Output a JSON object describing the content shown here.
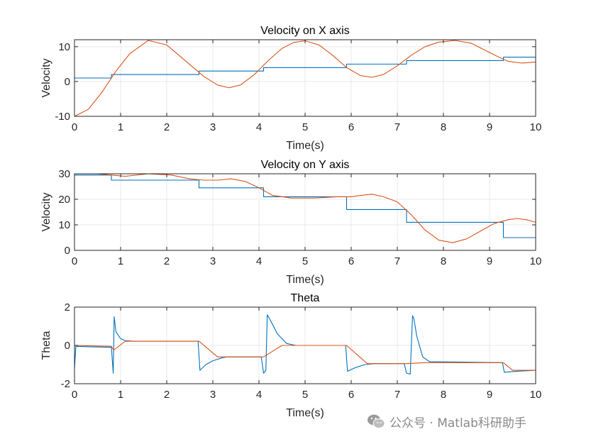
{
  "chart_data": [
    {
      "type": "line",
      "title": "Velocity on X axis",
      "xlabel": "Time(s)",
      "ylabel": "Velocity",
      "xlim": [
        0,
        10
      ],
      "ylim": [
        -10,
        12
      ],
      "xticks": [
        0,
        1,
        2,
        3,
        4,
        5,
        6,
        7,
        8,
        9,
        10
      ],
      "yticks": [
        -10,
        0,
        10
      ],
      "grid": true,
      "series": [
        {
          "kind": "step",
          "color": "#0072BD",
          "x": [
            0,
            0.8,
            2.7,
            4.1,
            5.9,
            7.2,
            9.3,
            10
          ],
          "y": [
            1,
            2,
            3,
            4,
            5,
            6,
            7,
            7
          ]
        },
        {
          "kind": "curve",
          "color": "#D95319",
          "x": [
            0,
            0.3,
            0.6,
            0.9,
            1.2,
            1.6,
            2.0,
            2.4,
            2.8,
            3.1,
            3.35,
            3.6,
            3.9,
            4.2,
            4.5,
            4.75,
            5.0,
            5.3,
            5.6,
            5.9,
            6.2,
            6.45,
            6.7,
            7.0,
            7.3,
            7.6,
            7.9,
            8.25,
            8.6,
            8.9,
            9.2,
            9.4,
            9.7,
            10
          ],
          "y": [
            -10,
            -8,
            -3,
            3,
            8,
            11.8,
            10.5,
            6,
            1.5,
            -1,
            -1.8,
            -1,
            2,
            6,
            9.5,
            11.2,
            11.7,
            10.5,
            7.5,
            4,
            1.7,
            1.2,
            2,
            4.5,
            7.5,
            10,
            11.3,
            11.8,
            11,
            9,
            7,
            5.8,
            5.3,
            5.6
          ]
        }
      ]
    },
    {
      "type": "line",
      "title": "Velocity on Y axis",
      "xlabel": "Time(s)",
      "ylabel": "Velocity",
      "xlim": [
        0,
        10
      ],
      "ylim": [
        0,
        30
      ],
      "xticks": [
        0,
        1,
        2,
        3,
        4,
        5,
        6,
        7,
        8,
        9,
        10
      ],
      "yticks": [
        0,
        10,
        20,
        30
      ],
      "grid": true,
      "series": [
        {
          "kind": "step",
          "color": "#0072BD",
          "x": [
            0,
            0.8,
            2.7,
            4.1,
            5.9,
            7.2,
            9.3,
            10
          ],
          "y": [
            29.5,
            27.5,
            24.5,
            21,
            16,
            11,
            5,
            5
          ]
        },
        {
          "kind": "curve",
          "color": "#D95319",
          "x": [
            0,
            0.5,
            0.8,
            1.1,
            1.6,
            2.1,
            2.5,
            2.8,
            3.1,
            3.4,
            3.7,
            4.0,
            4.3,
            4.7,
            5.2,
            5.7,
            6.0,
            6.2,
            6.45,
            6.7,
            7.0,
            7.3,
            7.6,
            7.9,
            8.2,
            8.5,
            8.8,
            9.1,
            9.4,
            9.6,
            9.8,
            10
          ],
          "y": [
            30,
            30,
            29.5,
            29,
            30,
            29.5,
            28,
            27.5,
            27.5,
            28,
            27,
            24.5,
            21.5,
            20.5,
            20.5,
            21,
            21,
            21.5,
            22,
            21,
            19,
            14,
            8,
            4,
            3,
            4.5,
            7.5,
            10.5,
            12,
            12.5,
            12,
            11
          ]
        }
      ]
    },
    {
      "type": "line",
      "title": "Theta",
      "xlabel": "Time(s)",
      "ylabel": "Theta",
      "xlim": [
        0,
        10
      ],
      "ylim": [
        -2,
        2
      ],
      "xticks": [
        0,
        1,
        2,
        3,
        4,
        5,
        6,
        7,
        8,
        9,
        10
      ],
      "yticks": [
        -2,
        0,
        2
      ],
      "grid": true,
      "series": [
        {
          "kind": "curve",
          "color": "#0072BD",
          "x": [
            0,
            0.03,
            0.8,
            0.84,
            0.86,
            0.9,
            1.0,
            1.1,
            1.3,
            2.68,
            2.72,
            2.85,
            3.0,
            3.2,
            3.3,
            4.05,
            4.1,
            4.15,
            4.18,
            4.25,
            4.4,
            4.6,
            4.8,
            5.88,
            5.92,
            6.1,
            6.3,
            6.5,
            7.15,
            7.2,
            7.28,
            7.33,
            7.36,
            7.42,
            7.55,
            7.7,
            9.28,
            9.32,
            9.6,
            10
          ],
          "y": [
            -1.2,
            -0.05,
            -0.1,
            -1.45,
            1.5,
            0.7,
            0.35,
            0.25,
            0.22,
            0.22,
            -1.3,
            -1.0,
            -0.8,
            -0.65,
            -0.6,
            -0.6,
            -1.45,
            -1.3,
            1.6,
            1.3,
            0.6,
            0.1,
            0,
            0,
            -1.35,
            -1.15,
            -1.0,
            -0.95,
            -0.95,
            -1.45,
            -1.5,
            1.55,
            1.4,
            0.5,
            -0.6,
            -0.85,
            -0.9,
            -1.4,
            -1.35,
            -1.3
          ]
        },
        {
          "kind": "curve",
          "color": "#D95319",
          "x": [
            0,
            0.8,
            0.85,
            1.1,
            2.7,
            3.1,
            4.1,
            4.5,
            5.9,
            6.35,
            7.2,
            7.6,
            9.3,
            9.5,
            10
          ],
          "y": [
            0,
            -0.05,
            -0.25,
            0.22,
            0.22,
            -0.6,
            -0.6,
            0,
            0,
            -0.95,
            -0.95,
            -0.9,
            -0.9,
            -1.3,
            -1.3
          ]
        }
      ]
    }
  ],
  "watermark": {
    "text": "公众号 · Matlab科研助手",
    "logo_icon": "wechat-logo-icon"
  }
}
